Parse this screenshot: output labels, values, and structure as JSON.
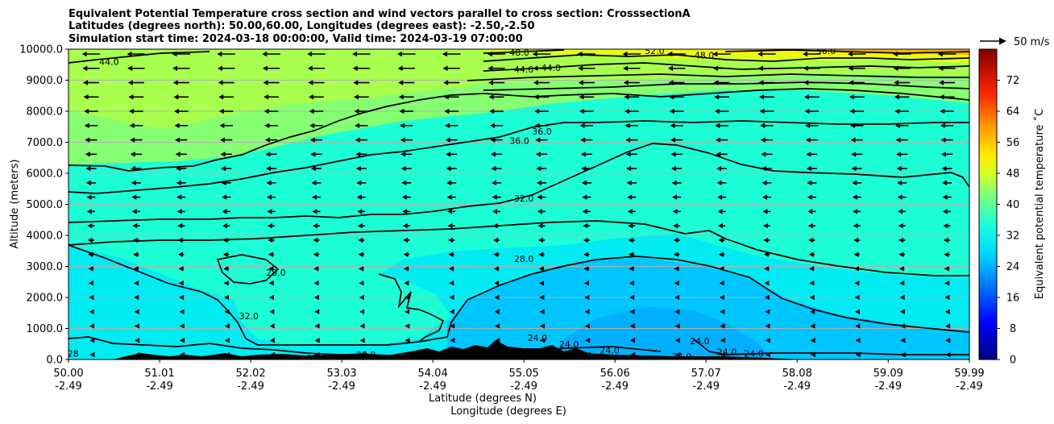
{
  "chart_data": {
    "type": "contour",
    "title_lines": [
      "Equivalent Potential Temperature cross section and wind vectors parallel to cross section: CrosssectionA",
      "Latitudes (degrees north): 50.00,60.00, Longitudes (degrees east): -2.50,-2.50",
      "Simulation start time: 2024-03-18 00:00:00, Valid time: 2024-03-19 07:00:00"
    ],
    "xlabel_lat": "Latitude (degrees N)",
    "xlabel_lon": "Longitude (degrees E)",
    "ylabel": "Altitude (meters)",
    "xlim": [
      50.0,
      59.99
    ],
    "ylim": [
      0,
      10000
    ],
    "x_ticks": [
      {
        "value": 50.0,
        "lat": "50.00",
        "lon": "-2.49"
      },
      {
        "value": 51.01,
        "lat": "51.01",
        "lon": "-2.49"
      },
      {
        "value": 52.02,
        "lat": "52.02",
        "lon": "-2.49"
      },
      {
        "value": 53.03,
        "lat": "53.03",
        "lon": "-2.49"
      },
      {
        "value": 54.04,
        "lat": "54.04",
        "lon": "-2.49"
      },
      {
        "value": 55.05,
        "lat": "55.05",
        "lon": "-2.49"
      },
      {
        "value": 56.06,
        "lat": "56.06",
        "lon": "-2.49"
      },
      {
        "value": 57.07,
        "lat": "57.07",
        "lon": "-2.49"
      },
      {
        "value": 58.08,
        "lat": "58.08",
        "lon": "-2.49"
      },
      {
        "value": 59.09,
        "lat": "59.09",
        "lon": "-2.49"
      },
      {
        "value": 59.99,
        "lat": "59.99",
        "lon": "-2.49"
      }
    ],
    "y_ticks": [
      {
        "value": 0,
        "label": "0.0"
      },
      {
        "value": 1000,
        "label": "1000.0"
      },
      {
        "value": 2000,
        "label": "2000.0"
      },
      {
        "value": 3000,
        "label": "3000.0"
      },
      {
        "value": 4000,
        "label": "4000.0"
      },
      {
        "value": 5000,
        "label": "5000.0"
      },
      {
        "value": 6000,
        "label": "6000.0"
      },
      {
        "value": 7000,
        "label": "7000.0"
      },
      {
        "value": 8000,
        "label": "8000.0"
      },
      {
        "value": 9000,
        "label": "9000.0"
      },
      {
        "value": 10000,
        "label": "10000.0"
      }
    ],
    "grid": "horizontal",
    "colorbar": {
      "label": "Equivalent potential temperature ˚C",
      "range": [
        0,
        80
      ],
      "ticks": [
        {
          "value": 0,
          "label": "0"
        },
        {
          "value": 8,
          "label": "8"
        },
        {
          "value": 16,
          "label": "16"
        },
        {
          "value": 24,
          "label": "24"
        },
        {
          "value": 32,
          "label": "32"
        },
        {
          "value": 40,
          "label": "40"
        },
        {
          "value": 48,
          "label": "48"
        },
        {
          "value": 56,
          "label": "56"
        },
        {
          "value": 64,
          "label": "64"
        },
        {
          "value": 72,
          "label": "72"
        }
      ]
    },
    "quiver_key": {
      "label": "50 m/s",
      "speed": 50
    },
    "wind_direction": "toward south (negative along-section)",
    "contour_levels": [
      24.0,
      28.0,
      32.0,
      36.0,
      40.0,
      44.0,
      48.0,
      52.0,
      56.0
    ],
    "contour_labels": [
      {
        "text": "44.0",
        "lat": 50.45,
        "alt": 9600
      },
      {
        "text": "48.0",
        "lat": 55.0,
        "alt": 9900
      },
      {
        "text": "44.0",
        "lat": 55.05,
        "alt": 9350
      },
      {
        "text": "44.0",
        "lat": 55.35,
        "alt": 9400
      },
      {
        "text": "52.0",
        "lat": 56.5,
        "alt": 9950
      },
      {
        "text": "48.0",
        "lat": 57.05,
        "alt": 9800
      },
      {
        "text": "56.0",
        "lat": 58.4,
        "alt": 9950
      },
      {
        "text": "36.0",
        "lat": 55.0,
        "alt": 7050
      },
      {
        "text": "36.0",
        "lat": 55.25,
        "alt": 7350
      },
      {
        "text": "32.0",
        "lat": 55.05,
        "alt": 5200
      },
      {
        "text": "28.0",
        "lat": 55.05,
        "alt": 3250
      },
      {
        "text": "28.0",
        "lat": 52.3,
        "alt": 2800
      },
      {
        "text": "32.0",
        "lat": 52.0,
        "alt": 1400
      },
      {
        "text": "24.0",
        "lat": 55.2,
        "alt": 700
      },
      {
        "text": "24.0",
        "lat": 55.55,
        "alt": 500
      },
      {
        "text": "24.0",
        "lat": 56.0,
        "alt": 300
      },
      {
        "text": "24.0",
        "lat": 57.0,
        "alt": 600
      },
      {
        "text": "24.0",
        "lat": 56.8,
        "alt": 100
      },
      {
        "text": "24.0",
        "lat": 57.3,
        "alt": 250
      },
      {
        "text": "24.0",
        "lat": 57.6,
        "alt": 200
      },
      {
        "text": "28.0",
        "lat": 52.75,
        "alt": 50
      },
      {
        "text": "28.0",
        "lat": 53.3,
        "alt": 150
      },
      {
        "text": "28",
        "lat": 50.05,
        "alt": 200
      }
    ]
  }
}
